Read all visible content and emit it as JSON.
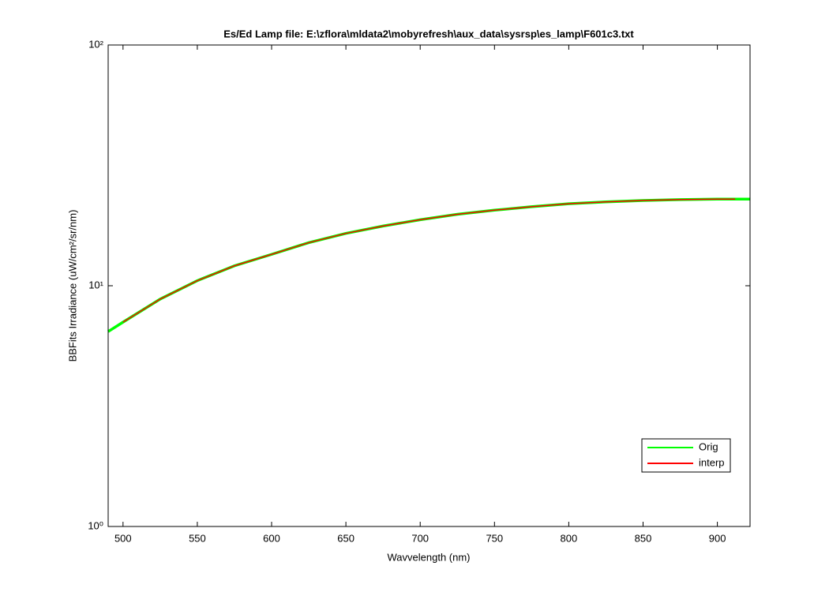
{
  "chart_data": {
    "type": "line",
    "title": "Es/Ed Lamp file: E:\\zflora\\mldata2\\mobyrefresh\\aux_data\\sysrsp\\es_lamp\\F601c3.txt",
    "xlabel": "Wavvelength (nm)",
    "ylabel": "BBFits Irradiance (uW/cm²/sr/nm)",
    "xlim": [
      490,
      922
    ],
    "xticks": [
      500,
      550,
      600,
      650,
      700,
      750,
      800,
      850,
      900
    ],
    "ylim": [
      1,
      100
    ],
    "yticks": [
      {
        "value": 1,
        "label": "10⁰"
      },
      {
        "value": 10,
        "label": "10¹"
      },
      {
        "value": 100,
        "label": "10²"
      }
    ],
    "yscale": "log",
    "legend": "lower right",
    "series": [
      {
        "name": "Orig",
        "color": "#00ff00",
        "x": [
          490,
          500,
          525,
          550,
          575,
          600,
          625,
          650,
          675,
          700,
          725,
          750,
          775,
          800,
          825,
          850,
          875,
          900,
          922
        ],
        "values": [
          6.45,
          7.06,
          8.8,
          10.5,
          12.1,
          13.5,
          15.1,
          16.5,
          17.7,
          18.8,
          19.8,
          20.6,
          21.3,
          21.9,
          22.3,
          22.6,
          22.8,
          22.9,
          22.9
        ]
      },
      {
        "name": "interp",
        "color": "#ff0000",
        "x": [
          500,
          525,
          550,
          575,
          600,
          625,
          650,
          675,
          700,
          725,
          750,
          775,
          800,
          825,
          850,
          875,
          900,
          912
        ],
        "values": [
          7.06,
          8.8,
          10.5,
          12.1,
          13.5,
          15.1,
          16.5,
          17.7,
          18.8,
          19.8,
          20.6,
          21.3,
          21.9,
          22.3,
          22.6,
          22.8,
          22.9,
          22.9
        ]
      }
    ]
  }
}
